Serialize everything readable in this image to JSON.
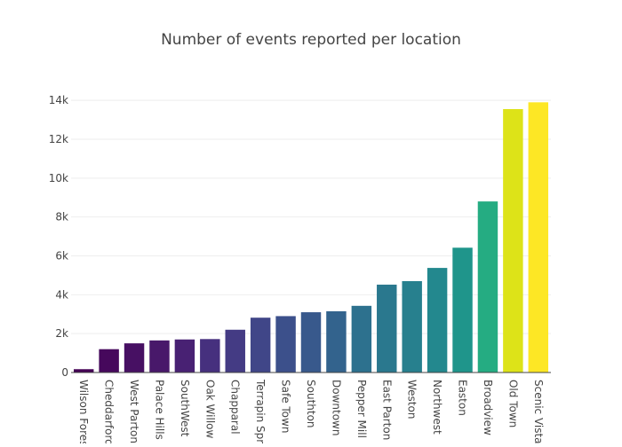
{
  "chart_data": {
    "type": "bar",
    "title": "Number of events reported per location",
    "xlabel": "",
    "ylabel": "",
    "categories": [
      "Wilson Forest",
      "Cheddarford",
      "West Parton",
      "Palace Hills",
      "SouthWest",
      "Oak Willow",
      "Chapparal",
      "Terrapin Springs",
      "Safe Town",
      "Southton",
      "Downtown",
      "Pepper Mill",
      "East Parton",
      "Weston",
      "Northwest",
      "Easton",
      "Broadview",
      "Old Town",
      "Scenic Vista"
    ],
    "values": [
      170,
      1200,
      1500,
      1650,
      1700,
      1720,
      2200,
      2820,
      2900,
      3100,
      3150,
      3430,
      4520,
      4700,
      5380,
      6420,
      8800,
      13550,
      13900
    ],
    "colors": [
      "#440154",
      "#46085c",
      "#471063",
      "#48186a",
      "#482173",
      "#46307e",
      "#443b84",
      "#404688",
      "#3c508b",
      "#38598c",
      "#33638d",
      "#2d718e",
      "#2a788e",
      "#27808e",
      "#23888e",
      "#1f958b",
      "#25ac82",
      "#dde318",
      "#fde725"
    ],
    "yticks": [
      0,
      2000,
      4000,
      6000,
      8000,
      10000,
      12000,
      14000
    ],
    "ytick_labels": [
      "0",
      "2k",
      "4k",
      "6k",
      "8k",
      "10k",
      "12k",
      "14k"
    ],
    "ylim": [
      0,
      14600
    ],
    "grid": true,
    "legend": "none"
  }
}
